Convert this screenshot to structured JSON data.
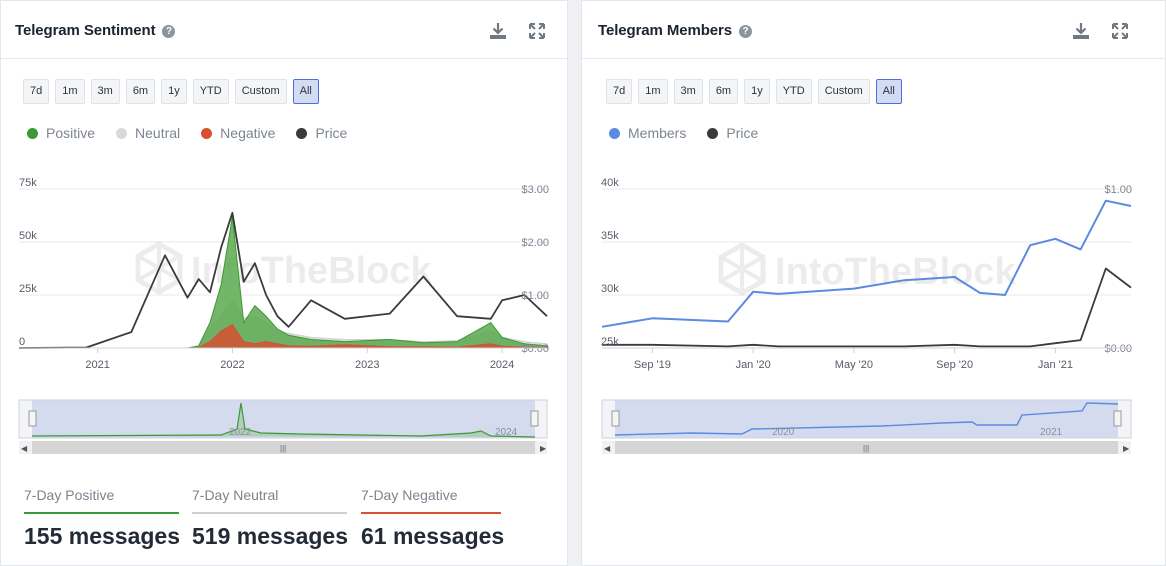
{
  "left": {
    "title": "Telegram Sentiment",
    "ranges": [
      "7d",
      "1m",
      "3m",
      "6m",
      "1y",
      "YTD",
      "Custom",
      "All"
    ],
    "active_range": "All",
    "legend": [
      {
        "label": "Positive",
        "color": "#3c9a34"
      },
      {
        "label": "Neutral",
        "color": "#d9d9d9"
      },
      {
        "label": "Negative",
        "color": "#d65032"
      },
      {
        "label": "Price",
        "color": "#3b3b3b"
      }
    ],
    "watermark": "IntoTheBlock",
    "navigator_labels": [
      "2022",
      "2024"
    ],
    "stats": [
      {
        "label": "7-Day Positive",
        "value": "155 messages",
        "color": "#3c9a34"
      },
      {
        "label": "7-Day Neutral",
        "value": "519 messages",
        "color": "#cfcfcf"
      },
      {
        "label": "7-Day Negative",
        "value": "61 messages",
        "color": "#d65032"
      }
    ]
  },
  "right": {
    "title": "Telegram Members",
    "ranges": [
      "7d",
      "1m",
      "3m",
      "6m",
      "1y",
      "YTD",
      "Custom",
      "All"
    ],
    "active_range": "All",
    "legend": [
      {
        "label": "Members",
        "color": "#5b8be0"
      },
      {
        "label": "Price",
        "color": "#3b3b3b"
      }
    ],
    "watermark": "IntoTheBlock",
    "navigator_labels": [
      "2020",
      "2021"
    ]
  },
  "chart_data": [
    {
      "type": "area",
      "title": "Telegram Sentiment",
      "x": [
        "2020-06",
        "2020-12",
        "2021-04",
        "2021-07",
        "2021-09",
        "2021-10",
        "2021-11",
        "2021-12",
        "2022-01",
        "2022-02",
        "2022-03",
        "2022-04",
        "2022-05",
        "2022-06",
        "2022-08",
        "2022-11",
        "2023-03",
        "2023-06",
        "2023-09",
        "2023-12",
        "2024-01",
        "2024-03",
        "2024-05"
      ],
      "x_ticks": [
        "2021",
        "2022",
        "2023",
        "2024"
      ],
      "y_left_ticks": [
        "0",
        "25k",
        "50k",
        "75k"
      ],
      "y_right_ticks": [
        "$0.00",
        "$1.00",
        "$2.00",
        "$3.00"
      ],
      "ylim_left": [
        0,
        75000
      ],
      "ylim_right": [
        0,
        3
      ],
      "series": [
        {
          "name": "Positive",
          "axis": "left",
          "values": [
            0,
            0,
            0,
            0,
            0,
            1000,
            12000,
            30000,
            62000,
            12000,
            20000,
            15000,
            9000,
            6000,
            4000,
            3000,
            4000,
            2500,
            3000,
            12000,
            5000,
            2000,
            1000
          ]
        },
        {
          "name": "Neutral",
          "axis": "left",
          "values": [
            0,
            0,
            0,
            0,
            0,
            800,
            9000,
            15000,
            22000,
            14000,
            15000,
            12000,
            8000,
            7000,
            5000,
            4000,
            4000,
            3000,
            3500,
            8000,
            5000,
            3000,
            2000
          ]
        },
        {
          "name": "Negative",
          "axis": "left",
          "values": [
            0,
            0,
            0,
            0,
            0,
            200,
            3000,
            8000,
            11000,
            3000,
            2000,
            3000,
            2000,
            1000,
            800,
            1500,
            600,
            500,
            400,
            2000,
            800,
            400,
            300
          ]
        },
        {
          "name": "Price",
          "axis": "right",
          "values": [
            0.0,
            0.01,
            0.3,
            1.75,
            0.95,
            1.3,
            1.05,
            1.9,
            2.55,
            1.25,
            1.6,
            1.0,
            0.6,
            0.4,
            0.9,
            0.55,
            0.65,
            1.35,
            0.6,
            0.55,
            0.9,
            1.0,
            0.6
          ]
        }
      ]
    },
    {
      "type": "line",
      "title": "Telegram Members",
      "x": [
        "2019-07",
        "2019-09",
        "2019-12",
        "2020-01",
        "2020-02",
        "2020-05",
        "2020-07",
        "2020-09",
        "2020-10",
        "2020-11",
        "2020-12",
        "2021-01",
        "2021-02",
        "2021-03",
        "2021-04"
      ],
      "x_ticks": [
        "Sep '19",
        "Jan '20",
        "May '20",
        "Sep '20",
        "Jan '21"
      ],
      "y_left_ticks": [
        "25k",
        "30k",
        "35k",
        "40k"
      ],
      "y_right_ticks": [
        "$0.00",
        "$1.00"
      ],
      "ylim_left": [
        25000,
        40000
      ],
      "ylim_right": [
        0,
        1
      ],
      "series": [
        {
          "name": "Members",
          "axis": "left",
          "values": [
            27000,
            27800,
            27500,
            30300,
            30100,
            30600,
            31400,
            31700,
            30200,
            30000,
            34700,
            35300,
            34300,
            38900,
            38400
          ]
        },
        {
          "name": "Price",
          "axis": "right",
          "values": [
            0.02,
            0.02,
            0.01,
            0.02,
            0.01,
            0.01,
            0.01,
            0.02,
            0.01,
            0.01,
            0.01,
            0.03,
            0.05,
            0.5,
            0.38
          ]
        }
      ]
    }
  ]
}
